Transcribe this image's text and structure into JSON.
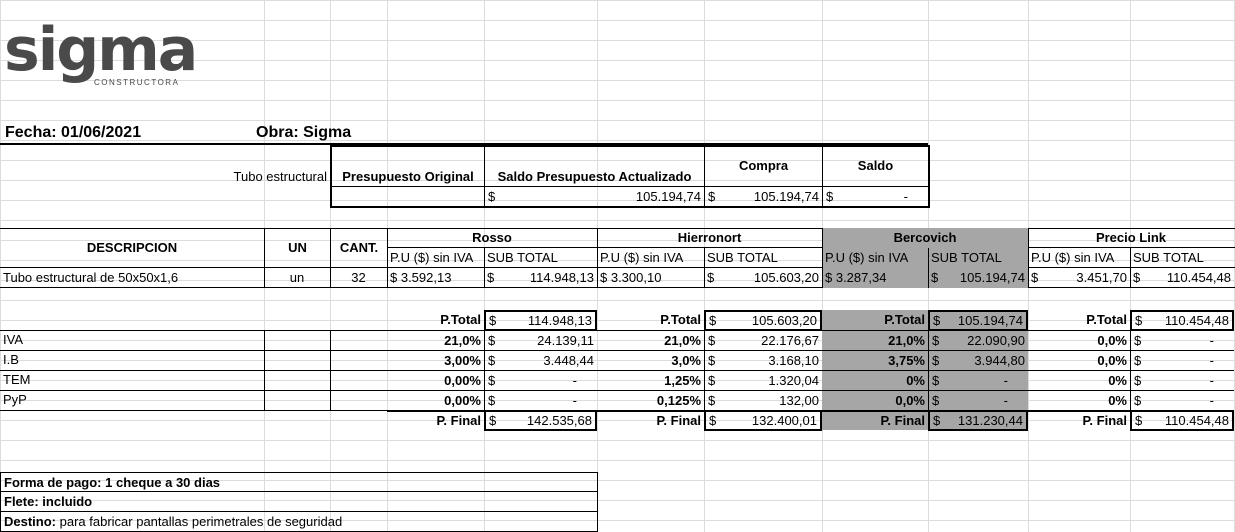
{
  "logo": {
    "brand": "sigma",
    "sub": "CONSTRUCTORA"
  },
  "header": {
    "fecha": "Fecha: 01/06/2021",
    "obra": "Obra: Sigma"
  },
  "budget": {
    "item": "Tubo estructural",
    "col_original": "Presupuesto Original",
    "col_saldo_act": "Saldo Presupuesto Actualizado",
    "col_compra": "Compra",
    "col_saldo": "Saldo",
    "cur": "$",
    "saldo_act_val": "105.194,74",
    "compra_val": "105.194,74",
    "saldo_val": "-"
  },
  "table": {
    "h_desc": "DESCRIPCION",
    "h_un": "UN",
    "h_cant": "CANT.",
    "pu_label": "P.U ($) sin IVA",
    "sub_label": "SUB TOTAL",
    "suppliers": [
      "Rosso",
      "Hierronort",
      "Bercovich",
      "Precio Link"
    ],
    "row_desc": "Tubo estructural de 50x50x1,6",
    "row_un": "un",
    "row_cant": "32",
    "pu": [
      "$ 3.592,13",
      "$ 3.300,10",
      "$ 3.287,34",
      "3.451,70"
    ],
    "sub": [
      "114.948,13",
      "105.603,20",
      "105.194,74",
      "110.454,48"
    ]
  },
  "summary": {
    "ptotal_label": "P.Total",
    "pfinal_label": "P. Final",
    "labels": [
      "IVA",
      "I.B",
      "TEM",
      "PyP"
    ],
    "ptotal": [
      "114.948,13",
      "105.603,20",
      "105.194,74",
      "110.454,48"
    ],
    "rates": [
      [
        "21,0%",
        "3,00%",
        "0,00%",
        "0,00%"
      ],
      [
        "21,0%",
        "3,0%",
        "1,25%",
        "0,125%"
      ],
      [
        "21,0%",
        "3,75%",
        "0%",
        "0,0%"
      ],
      [
        "0,0%",
        "0,0%",
        "0%",
        "0%"
      ]
    ],
    "amounts": [
      [
        "24.139,11",
        "3.448,44",
        "-",
        "-"
      ],
      [
        "22.176,67",
        "3.168,10",
        "1.320,04",
        "132,00"
      ],
      [
        "22.090,90",
        "3.944,80",
        "-",
        "-"
      ],
      [
        "-",
        "-",
        "-",
        "-"
      ]
    ],
    "pfinal": [
      "142.535,68",
      "132.400,01",
      "131.230,44",
      "110.454,48"
    ]
  },
  "footer": {
    "pago_label": "Forma de pago:",
    "pago_val": "1 cheque a 30 dias",
    "flete_label": "Flete:",
    "flete_val": "incluido",
    "destino_label": "Destino:",
    "destino_val": "para fabricar pantallas perimetrales de seguridad"
  }
}
